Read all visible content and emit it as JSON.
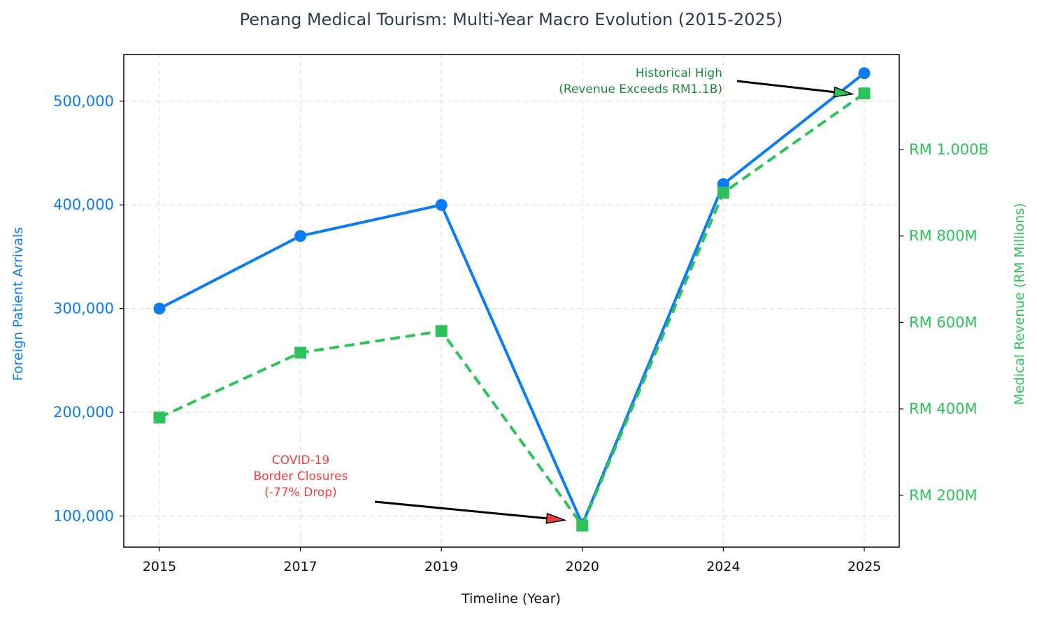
{
  "chart_data": {
    "type": "line",
    "title": "Penang Medical Tourism: Multi-Year Macro Evolution (2015-2025)",
    "xlabel": "Timeline (Year)",
    "ylabel_left": "Foreign Patient Arrivals",
    "ylabel_right": "Medical Revenue (RM Millions)",
    "categories": [
      "2015",
      "2017",
      "2019",
      "2020",
      "2024",
      "2025"
    ],
    "ylim_left": [
      70000,
      545000
    ],
    "ylim_right": [
      80,
      1220
    ],
    "yticks_left": [
      {
        "value": 100000,
        "label": "100,000"
      },
      {
        "value": 200000,
        "label": "200,000"
      },
      {
        "value": 300000,
        "label": "300,000"
      },
      {
        "value": 400000,
        "label": "400,000"
      },
      {
        "value": 500000,
        "label": "500,000"
      }
    ],
    "yticks_right": [
      {
        "value": 200,
        "label": "RM 200M"
      },
      {
        "value": 400,
        "label": "RM 400M"
      },
      {
        "value": 600,
        "label": "RM 600M"
      },
      {
        "value": 800,
        "label": "RM 800M"
      },
      {
        "value": 1000,
        "label": "RM 1.000B"
      }
    ],
    "series": [
      {
        "axis": "left",
        "values": [
          300000,
          370000,
          400000,
          92000,
          420000,
          527000
        ],
        "color": "#0a7cf5",
        "marker": "circle",
        "line_style": "solid"
      },
      {
        "axis": "right",
        "values": [
          380,
          530,
          580,
          130,
          900,
          1130
        ],
        "color": "#2ec35a",
        "marker": "square",
        "line_style": "dashed"
      }
    ],
    "annotations": [
      {
        "lines": [
          "COVID-19",
          "Border Closures",
          "(-77% Drop)"
        ],
        "color": "#f03e3e",
        "target_category": "2020",
        "arrow_color": "#f03e3e"
      },
      {
        "lines": [
          "Historical High",
          "(Revenue Exceeds RM1.1B)"
        ],
        "color": "#1e8a3c",
        "target_category": "2025",
        "arrow_color": "#2ec35a"
      }
    ],
    "grid": true
  }
}
